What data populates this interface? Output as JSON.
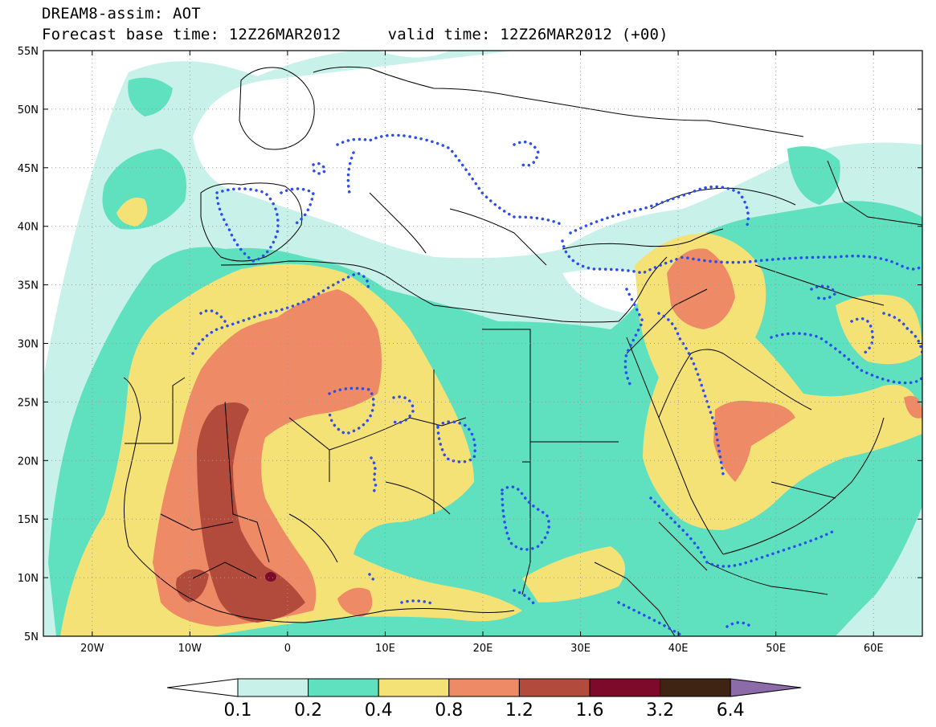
{
  "header": {
    "line1": "DREAM8-assim: AOT",
    "line2": "Forecast base time: 12Z26MAR2012     valid time: 12Z26MAR2012 (+00)"
  },
  "map": {
    "lon_range": [
      -25,
      65
    ],
    "lat_range": [
      5,
      55
    ],
    "lat_ticks": [
      {
        "value": 55,
        "label": "55N"
      },
      {
        "value": 50,
        "label": "50N"
      },
      {
        "value": 45,
        "label": "45N"
      },
      {
        "value": 40,
        "label": "40N"
      },
      {
        "value": 35,
        "label": "35N"
      },
      {
        "value": 30,
        "label": "30N"
      },
      {
        "value": 25,
        "label": "25N"
      },
      {
        "value": 20,
        "label": "20N"
      },
      {
        "value": 15,
        "label": "15N"
      },
      {
        "value": 10,
        "label": "10N"
      },
      {
        "value": 5,
        "label": "5N"
      }
    ],
    "lon_ticks": [
      {
        "value": -20,
        "label": "20W"
      },
      {
        "value": -10,
        "label": "10W"
      },
      {
        "value": 0,
        "label": "0"
      },
      {
        "value": 10,
        "label": "10E"
      },
      {
        "value": 20,
        "label": "20E"
      },
      {
        "value": 30,
        "label": "30E"
      },
      {
        "value": 40,
        "label": "40E"
      },
      {
        "value": 50,
        "label": "50E"
      },
      {
        "value": 60,
        "label": "60E"
      }
    ],
    "grid": true,
    "dotted_contour_color": "#2b4cf0"
  },
  "colorbar": {
    "labels": [
      "0.1",
      "0.2",
      "0.4",
      "0.8",
      "1.2",
      "1.6",
      "3.2",
      "6.4"
    ],
    "colors": [
      "#ffffff",
      "#c8f1ea",
      "#5fe0bf",
      "#f5e276",
      "#ee8a66",
      "#b24b3c",
      "#7c0a28",
      "#3f2313",
      "#8d6aa8"
    ]
  }
}
